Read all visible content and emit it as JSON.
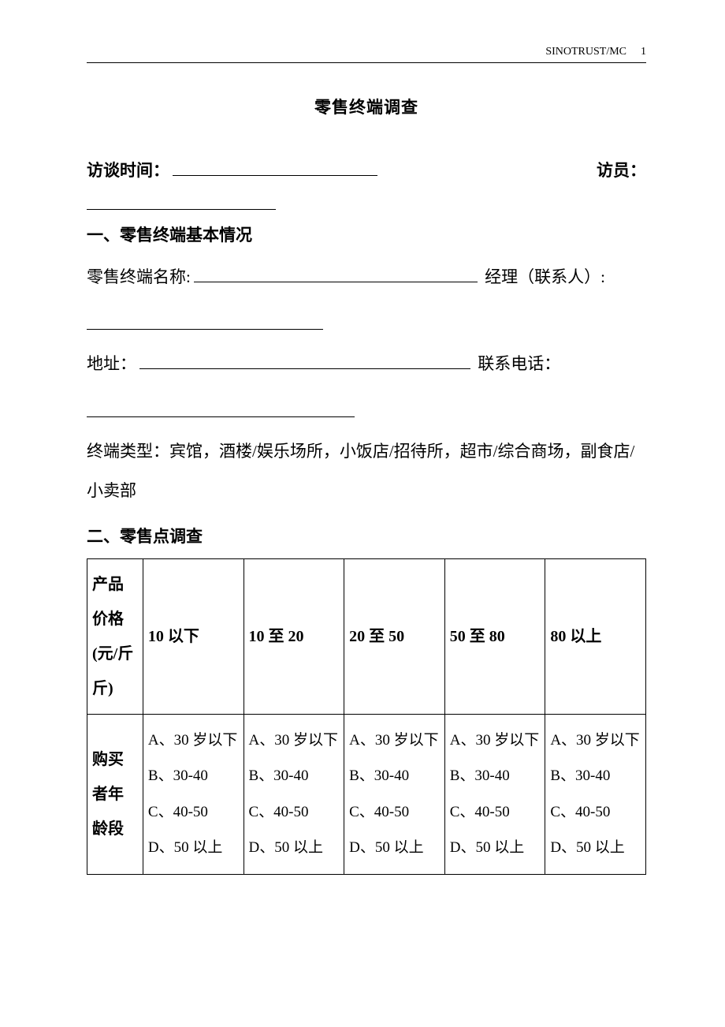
{
  "header": {
    "org": "SINOTRUST/MC",
    "page": "1"
  },
  "title": "零售终端调查",
  "fields": {
    "interview_time_label": "访谈时间：",
    "interviewer_label": "访员：",
    "section1": "一、零售终端基本情况",
    "terminal_name_label": "零售终端名称:",
    "manager_label": "经理（联系人）:",
    "address_label": "地址：",
    "phone_label": "联系电话：",
    "terminal_type_text": "终端类型：宾馆，酒楼/娱乐场所，小饭店/招待所，超市/综合商场，副食店/小卖部",
    "section2": "二、零售点调查"
  },
  "table": {
    "row1_header": "产品价格(元/斤斤)",
    "row1_cols": [
      "10 以下",
      "10 至 20",
      "20 至 50",
      "50 至 80",
      "80 以上"
    ],
    "row2_header": "购买者年龄段",
    "row2_cell": "A、30 岁以下\nB、30-40\nC、40-50\nD、50 以上"
  }
}
